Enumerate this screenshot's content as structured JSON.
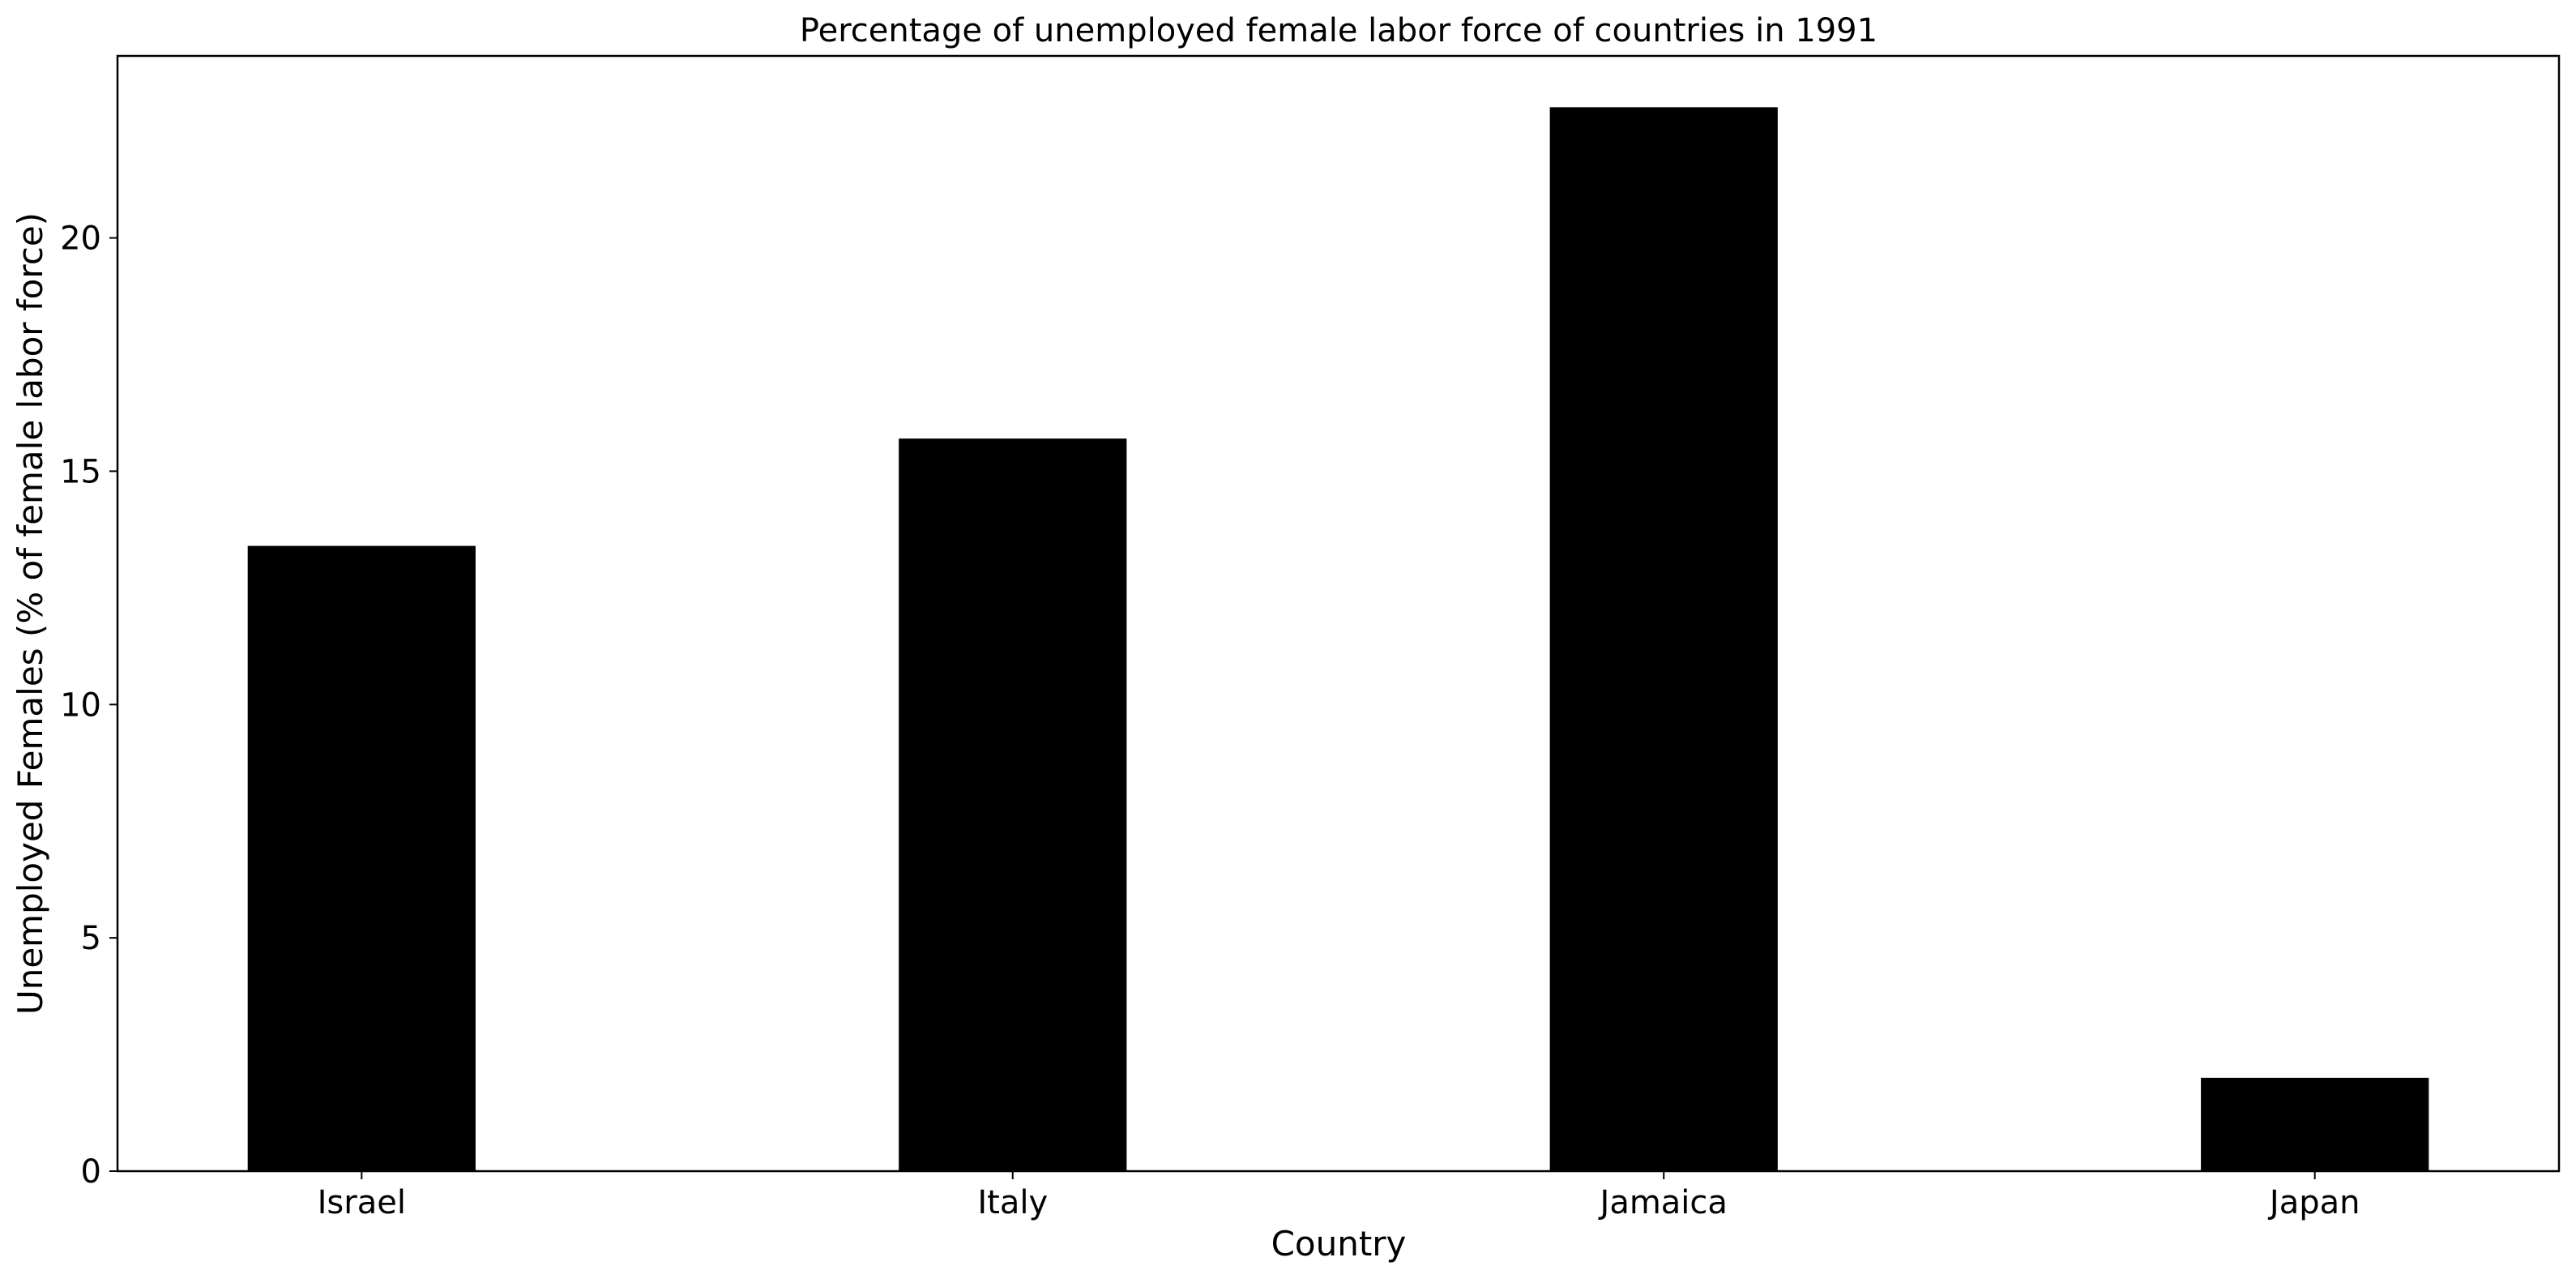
{
  "chart_data": {
    "type": "bar",
    "title": "Percentage of unemployed female labor force of countries in 1991",
    "xlabel": "Country",
    "ylabel": "Unemployed Females (% of female labor force)",
    "categories": [
      "Israel",
      "Italy",
      "Jamaica",
      "Japan"
    ],
    "values": [
      13.4,
      15.7,
      22.8,
      2.0
    ],
    "ylim": [
      0,
      23.9
    ],
    "yticks": [
      0,
      5,
      10,
      15,
      20
    ],
    "ytick_labels": [
      "0",
      "5",
      "10",
      "15",
      "20"
    ],
    "bar_color": "#000000",
    "grid": false,
    "legend": "none"
  }
}
